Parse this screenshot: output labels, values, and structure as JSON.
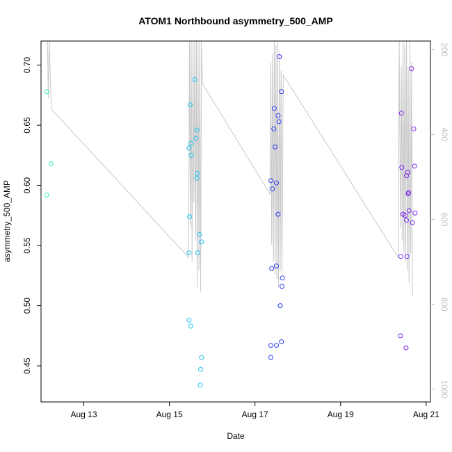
{
  "chart_data": {
    "type": "scatter",
    "title": "ATOM1 Northbound asymmetry_500_AMP",
    "xlabel": "Date",
    "ylabel": "asymmetry_500_AMP",
    "x_unit": "days",
    "x_ticks": [
      {
        "label": "Aug 13",
        "value": 13
      },
      {
        "label": "Aug 15",
        "value": 15
      },
      {
        "label": "Aug 17",
        "value": 17
      },
      {
        "label": "Aug 19",
        "value": 19
      },
      {
        "label": "Aug 21",
        "value": 21
      }
    ],
    "xlim": [
      12.0,
      21.1
    ],
    "ylim": [
      0.42,
      0.72
    ],
    "y_ticks": [
      0.45,
      0.5,
      0.55,
      0.6,
      0.65,
      0.7
    ],
    "y_tick_labels": [
      "0.45",
      "0.50",
      "0.55",
      "0.60",
      "0.65",
      "0.70"
    ],
    "right_axis": {
      "color": "#bdbdbd",
      "ylim": [
        1030,
        180
      ],
      "ticks": [
        200,
        400,
        600,
        800,
        1000
      ],
      "tick_labels": [
        "200",
        "400",
        "600",
        "800",
        "1000"
      ],
      "series": [
        [
          12.15,
          180
        ],
        [
          12.17,
          315
        ],
        [
          12.19,
          180
        ],
        [
          12.24,
          340
        ],
        [
          15.45,
          690
        ],
        [
          15.47,
          180
        ],
        [
          15.49,
          620
        ],
        [
          15.51,
          180
        ],
        [
          15.53,
          700
        ],
        [
          15.55,
          180
        ],
        [
          15.57,
          560
        ],
        [
          15.59,
          180
        ],
        [
          15.61,
          650
        ],
        [
          15.63,
          180
        ],
        [
          15.65,
          760
        ],
        [
          15.67,
          180
        ],
        [
          15.69,
          720
        ],
        [
          15.71,
          180
        ],
        [
          15.73,
          770
        ],
        [
          15.75,
          180
        ],
        [
          15.77,
          280
        ],
        [
          17.35,
          540
        ],
        [
          17.37,
          230
        ],
        [
          17.39,
          660
        ],
        [
          17.41,
          210
        ],
        [
          17.43,
          700
        ],
        [
          17.45,
          180
        ],
        [
          17.47,
          730
        ],
        [
          17.49,
          190
        ],
        [
          17.51,
          740
        ],
        [
          17.53,
          180
        ],
        [
          17.55,
          760
        ],
        [
          17.57,
          200
        ],
        [
          17.59,
          720
        ],
        [
          17.61,
          250
        ],
        [
          17.63,
          730
        ],
        [
          17.66,
          260
        ],
        [
          20.35,
          690
        ],
        [
          20.37,
          180
        ],
        [
          20.4,
          620
        ],
        [
          20.42,
          240
        ],
        [
          20.44,
          650
        ],
        [
          20.46,
          180
        ],
        [
          20.48,
          680
        ],
        [
          20.5,
          190
        ],
        [
          20.52,
          700
        ],
        [
          20.54,
          180
        ],
        [
          20.56,
          720
        ],
        [
          20.58,
          240
        ],
        [
          20.6,
          750
        ],
        [
          20.62,
          180
        ],
        [
          20.64,
          680
        ],
        [
          20.66,
          230
        ],
        [
          20.68,
          780
        ]
      ]
    },
    "color_scale": [
      "#34f5a6",
      "#1cc6f0",
      "#2a3cf0",
      "#7a25f0"
    ],
    "series": [
      {
        "color": "#34f5a6",
        "points": [
          [
            12.13,
            0.678
          ],
          [
            12.13,
            0.592
          ],
          [
            12.23,
            0.618
          ]
        ]
      },
      {
        "color": "#1cc6f0",
        "points": [
          [
            15.48,
            0.667
          ],
          [
            15.46,
            0.631
          ],
          [
            15.5,
            0.635
          ],
          [
            15.51,
            0.625
          ],
          [
            15.47,
            0.574
          ],
          [
            15.46,
            0.544
          ],
          [
            15.46,
            0.488
          ],
          [
            15.5,
            0.483
          ],
          [
            15.59,
            0.688
          ],
          [
            15.64,
            0.646
          ],
          [
            15.62,
            0.639
          ],
          [
            15.65,
            0.61
          ],
          [
            15.64,
            0.606
          ],
          [
            15.7,
            0.559
          ],
          [
            15.75,
            0.553
          ],
          [
            15.66,
            0.544
          ],
          [
            15.75,
            0.457
          ],
          [
            15.73,
            0.447
          ],
          [
            15.72,
            0.434
          ]
        ]
      },
      {
        "color": "#2a3cf0",
        "points": [
          [
            17.37,
            0.604
          ],
          [
            17.41,
            0.597
          ],
          [
            17.44,
            0.647
          ],
          [
            17.45,
            0.664
          ],
          [
            17.47,
            0.632
          ],
          [
            17.5,
            0.602
          ],
          [
            17.54,
            0.658
          ],
          [
            17.56,
            0.653
          ],
          [
            17.57,
            0.707
          ],
          [
            17.62,
            0.678
          ],
          [
            17.54,
            0.576
          ],
          [
            17.39,
            0.531
          ],
          [
            17.5,
            0.533
          ],
          [
            17.64,
            0.523
          ],
          [
            17.63,
            0.516
          ],
          [
            17.59,
            0.5
          ],
          [
            17.37,
            0.467
          ],
          [
            17.5,
            0.467
          ],
          [
            17.62,
            0.47
          ],
          [
            17.37,
            0.457
          ]
        ]
      },
      {
        "color": "#7a25f0",
        "points": [
          [
            20.42,
            0.66
          ],
          [
            20.43,
            0.615
          ],
          [
            20.46,
            0.576
          ],
          [
            20.51,
            0.575
          ],
          [
            20.54,
            0.608
          ],
          [
            20.57,
            0.611
          ],
          [
            20.58,
            0.593
          ],
          [
            20.59,
            0.594
          ],
          [
            20.6,
            0.579
          ],
          [
            20.54,
            0.571
          ],
          [
            20.66,
            0.697
          ],
          [
            20.71,
            0.647
          ],
          [
            20.73,
            0.616
          ],
          [
            20.74,
            0.577
          ],
          [
            20.68,
            0.569
          ],
          [
            20.41,
            0.541
          ],
          [
            20.55,
            0.541
          ],
          [
            20.4,
            0.475
          ],
          [
            20.53,
            0.465
          ]
        ]
      }
    ]
  }
}
